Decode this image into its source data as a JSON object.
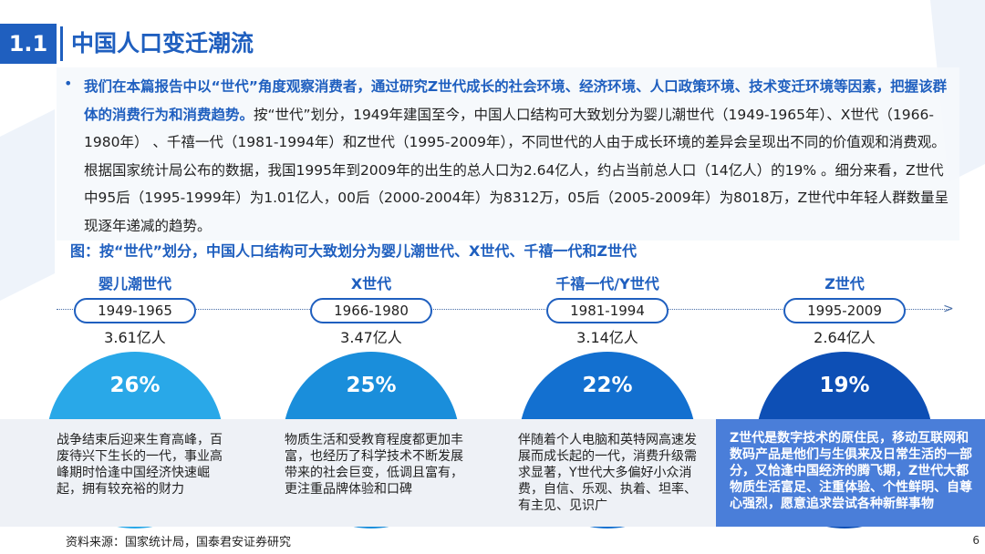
{
  "section": {
    "number": "1.1",
    "title": "中国人口变迁潮流"
  },
  "intro": {
    "bullet": "•",
    "bold_text": "我们在本篇报告中以“世代”角度观察消费者，通过研究Z世代成长的社会环境、经济环境、人口政策环境、技术变迁环境等因素，把握该群体的消费行为和消费趋势。",
    "normal_text": "按“世代”划分，1949年建国至今，中国人口结构可大致划分为婴儿潮世代（1949-1965年）、X世代（1966-1980年） 、千禧一代（1981-1994年）和Z世代（1995-2009年），不同世代的人由于成长环境的差异会呈现出不同的价值观和消费观。根据国家统计局公布的数据，我国1995年到2009年的出生的总人口为2.64亿人，约占当前总人口（14亿人）的19% 。细分来看，Z世代中95后（1995-1999年）为1.01亿人，00后（2000-2004年）为8312万，05后（2005-2009年）为8018万，Z世代中年轻人群数量呈现逐年递减的趋势。"
  },
  "figure_caption": "图：按“世代”划分，中国人口结构可大致划分为婴儿潮世代、X世代、千禧一代和Z世代",
  "generations": [
    {
      "title": "婴儿潮世代",
      "years": "1949-1965",
      "population": "3.61亿人",
      "percent": "26%",
      "color": "#29a8e8",
      "description": "战争结束后迎来生育高峰，百废待兴下生长的一代，事业高峰期时恰逢中国经济快速崛起，拥有较充裕的财力"
    },
    {
      "title": "X世代",
      "years": "1966-1980",
      "population": "3.47亿人",
      "percent": "25%",
      "color": "#1a8edb",
      "description": "物质生活和受教育程度都更加丰富，也经历了科学技术不断发展带来的社会巨变，低调且富有，更注重品牌体验和口碑"
    },
    {
      "title": "千禧一代/Y世代",
      "years": "1981-1994",
      "population": "3.14亿人",
      "percent": "22%",
      "color": "#1370d0",
      "description": "伴随着个人电脑和英特网高速发展而成长起的一代，消费升级需求显著，Y世代大多偏好小众消费，自信、乐观、执着、坦率、有主见、见识广"
    },
    {
      "title": "Z世代",
      "years": "1995-2009",
      "population": "2.64亿人",
      "percent": "19%",
      "color": "#0d4fb5",
      "description": "Z世代是数字技术的原住民，移动互联网和数码产品是他们与生俱来及日常生活的一部分，又恰逢中国经济的腾飞期，Z世代大都物质生活富足、注重体验、个性鲜明、自尊心强烈，愿意追求尝试各种新鲜事物"
    }
  ],
  "source": "资料来源：国家统计局，国泰君安证券研究",
  "page_number": "6"
}
